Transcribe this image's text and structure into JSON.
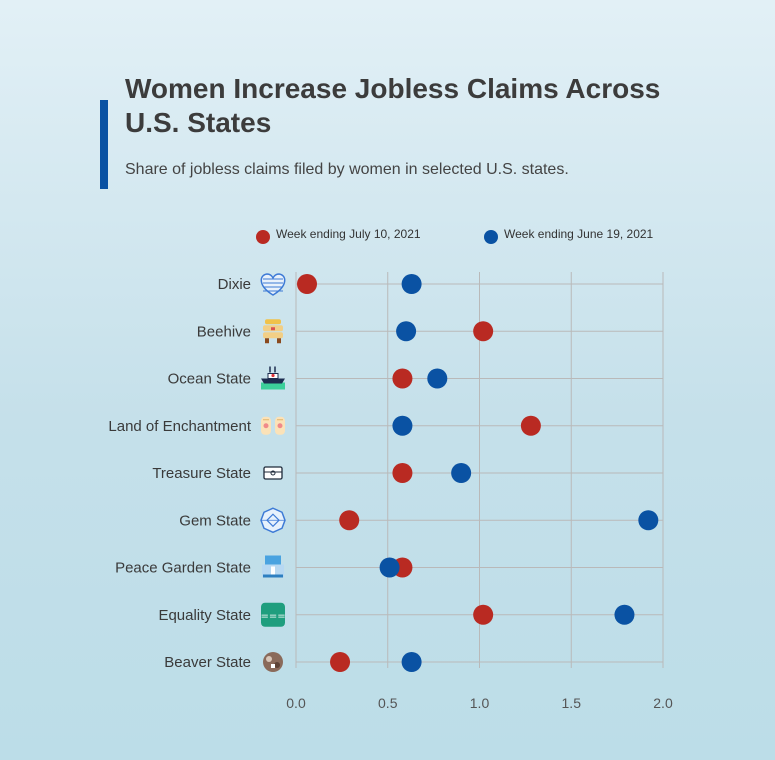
{
  "colors": {
    "accent": "#0a52a3",
    "series_a": "#b92a22",
    "series_b": "#0a52a3",
    "grid": "#b9b9b9"
  },
  "chart_data": {
    "type": "scatter",
    "title": "Women Increase Jobless Claims Across U.S. States",
    "subtitle": "Share of jobless claims filed by women in selected U.S. states.",
    "xlabel": "",
    "ylabel": "",
    "xlim": [
      0,
      2
    ],
    "x_ticks": [
      "0.0",
      "0.5",
      "1.0",
      "1.5",
      "2.0"
    ],
    "grid": true,
    "legend_position": "top",
    "categories": [
      {
        "label": "Dixie",
        "icon": "heart-flag-icon"
      },
      {
        "label": "Beehive",
        "icon": "beehive-icon"
      },
      {
        "label": "Ocean State",
        "icon": "ship-icon"
      },
      {
        "label": "Land of Enchantment",
        "icon": "hands-icon"
      },
      {
        "label": "Treasure State",
        "icon": "treasure-chest-icon"
      },
      {
        "label": "Gem State",
        "icon": "gem-icon"
      },
      {
        "label": "Peace Garden State",
        "icon": "garden-building-icon"
      },
      {
        "label": "Equality State",
        "icon": "equals-icon"
      },
      {
        "label": "Beaver State",
        "icon": "beaver-icon"
      }
    ],
    "series": [
      {
        "name": "Week ending July 10, 2021",
        "color": "#b92a22",
        "values": [
          0.06,
          1.02,
          0.58,
          1.28,
          0.58,
          0.29,
          0.58,
          1.02,
          0.24
        ]
      },
      {
        "name": "Week ending June 19, 2021",
        "color": "#0a52a3",
        "values": [
          0.63,
          0.6,
          0.77,
          0.58,
          0.9,
          1.92,
          0.51,
          1.79,
          0.63
        ]
      }
    ]
  }
}
